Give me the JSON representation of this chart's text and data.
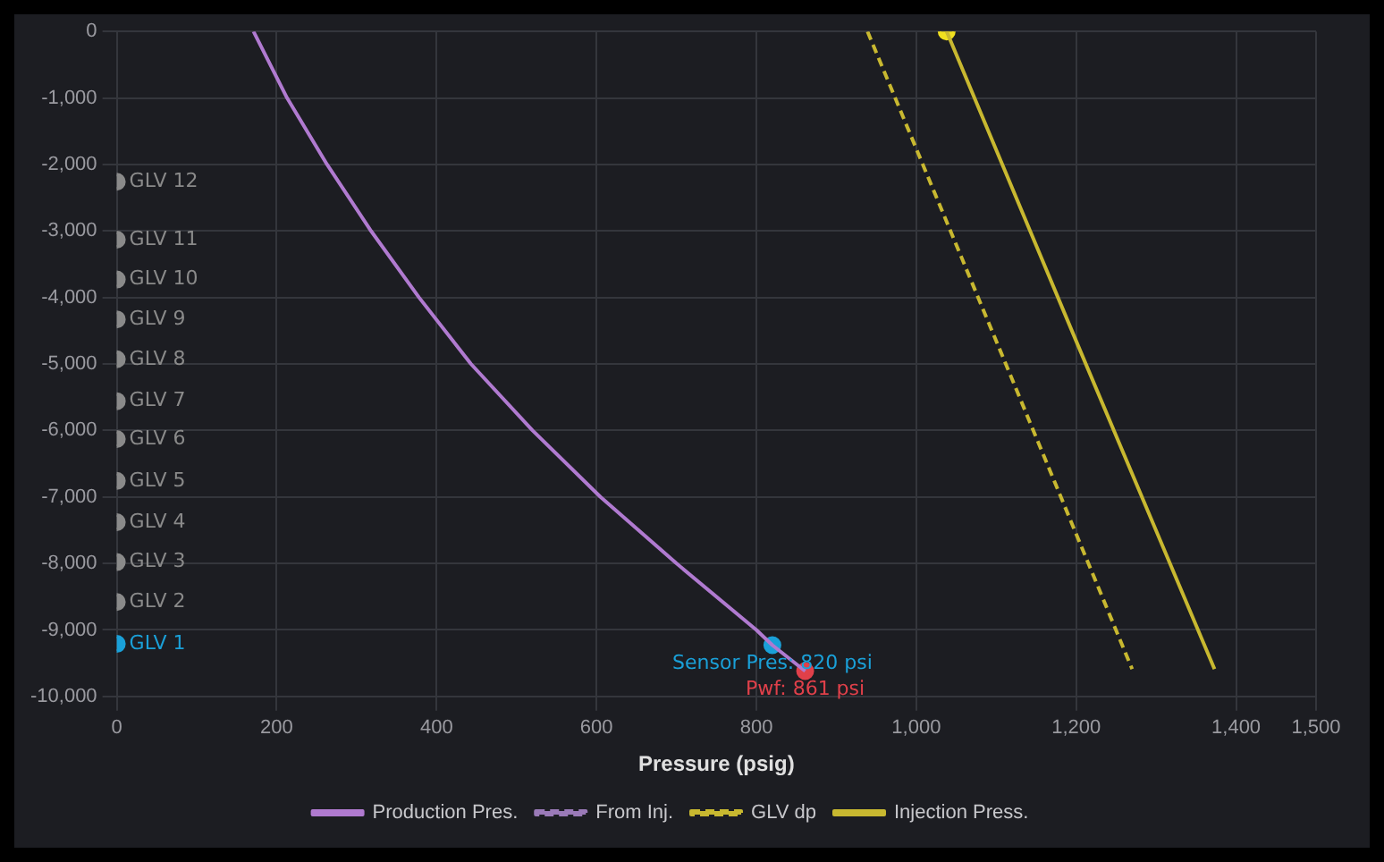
{
  "chart_data": {
    "type": "line",
    "xlabel": "Pressure (psig)",
    "xlim": [
      0,
      1500
    ],
    "xticks": [
      0,
      200,
      400,
      600,
      800,
      {
        "value": 1000,
        "label": "1,000"
      },
      {
        "value": 1200,
        "label": "1,200"
      },
      {
        "value": 1400,
        "label": "1,400"
      },
      {
        "value": 1500,
        "label": "1,500"
      }
    ],
    "ylim": [
      -10000,
      0
    ],
    "yticks": [
      {
        "value": -10000,
        "label": "-10,000"
      },
      {
        "value": -9000,
        "label": "-9,000"
      },
      {
        "value": -8000,
        "label": "-8,000"
      },
      {
        "value": -7000,
        "label": "-7,000"
      },
      {
        "value": -6000,
        "label": "-6,000"
      },
      {
        "value": -5000,
        "label": "-5,000"
      },
      {
        "value": -4000,
        "label": "-4,000"
      },
      {
        "value": -3000,
        "label": "-3,000"
      },
      {
        "value": -2000,
        "label": "-2,000"
      },
      {
        "value": -1000,
        "label": "-1,000"
      },
      0
    ],
    "grid": true,
    "legend": "bottom",
    "annotations": [
      {
        "text": "Sensor Pres: 820 psi",
        "x": 820,
        "y": -9230
      },
      {
        "text": "Pwf: 861 psi",
        "x": 861,
        "y": -9620
      }
    ],
    "series": [
      {
        "name": "Production Pres.",
        "color": "#b07ad0",
        "line_style": "solid",
        "marker": "none",
        "x": [
          171,
          213,
          263,
          318,
          378,
          443,
          520,
          605,
          700,
          800,
          820,
          861
        ],
        "values": [
          0,
          -1000,
          -2000,
          -3000,
          -4000,
          -5000,
          -6000,
          -7000,
          -8000,
          -9000,
          -9230,
          -9620
        ]
      },
      {
        "name": "From Inj.",
        "color": "#9a7ab8",
        "line_style": "dashed",
        "marker": "none"
      },
      {
        "name": "GLV dp",
        "color": "#c8b830",
        "line_style": "dashed",
        "marker": "none",
        "x": [
          939,
          1105,
          1270
        ],
        "values": [
          0,
          -4800,
          -9590
        ]
      },
      {
        "name": "Injection Press.",
        "color": "#c8b830",
        "line_style": "solid",
        "marker": "none",
        "x": [
          1038,
          1205,
          1373
        ],
        "values": [
          0,
          -4800,
          -9590
        ]
      },
      {
        "type": "scatter",
        "marker": "circle",
        "color": "#f0e020",
        "x": [
          1038
        ],
        "values": [
          0
        ]
      },
      {
        "type": "scatter",
        "marker": "circle",
        "colors": [
          "#1aa0d8",
          "#8a8a8a",
          "#8a8a8a",
          "#8a8a8a",
          "#8a8a8a",
          "#8a8a8a",
          "#8a8a8a",
          "#8a8a8a",
          "#8a8a8a",
          "#8a8a8a",
          "#8a8a8a",
          "#8a8a8a"
        ],
        "x": [
          0,
          0,
          0,
          0,
          0,
          0,
          0,
          0,
          0,
          0,
          0,
          0
        ],
        "values": [
          -9210,
          -8580,
          -7980,
          -7380,
          -6760,
          -6130,
          -5560,
          -4930,
          -4330,
          -3730,
          -3130,
          -2260
        ],
        "value_labels": [
          "GLV 1",
          "GLV 2",
          "GLV 3",
          "GLV 4",
          "GLV 5",
          "GLV 6",
          "GLV 7",
          "GLV 8",
          "GLV 9",
          "GLV 10",
          "GLV 11",
          "GLV 12"
        ]
      },
      {
        "type": "scatter",
        "marker": "circle",
        "color": "#1aa0d8",
        "x": [
          820
        ],
        "values": [
          -9230
        ]
      },
      {
        "type": "scatter",
        "marker": "circle",
        "color": "#e0404a",
        "x": [
          861
        ],
        "values": [
          -9620
        ]
      }
    ]
  }
}
